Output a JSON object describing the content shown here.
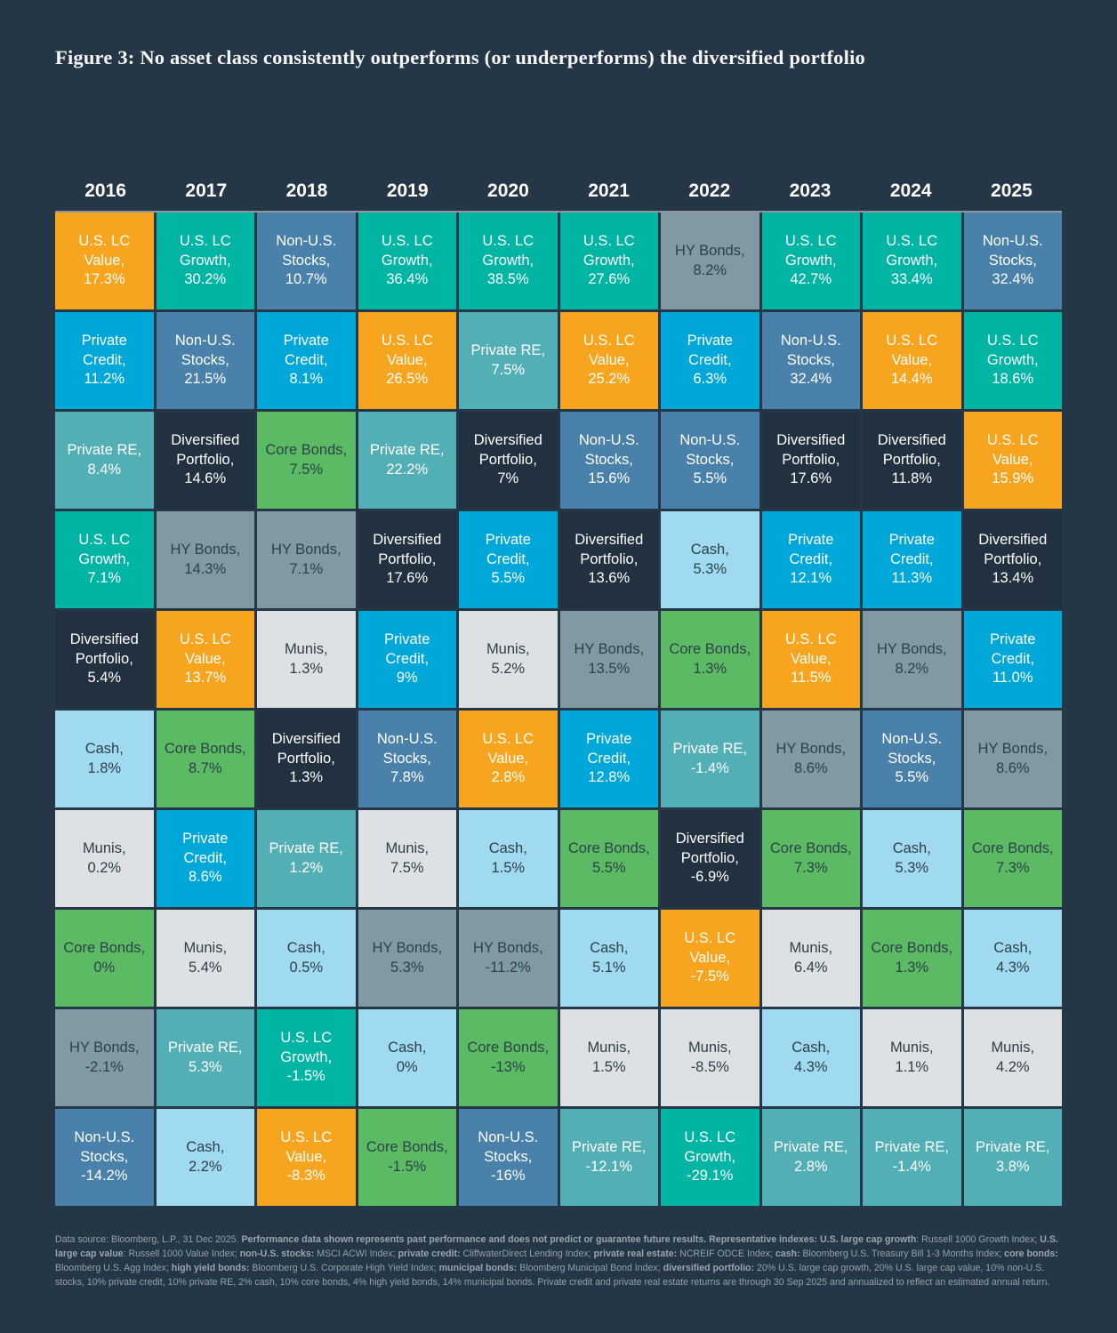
{
  "title": "Figure 3: No asset class consistently outperforms (or underperforms) the diversified portfolio",
  "chart_data": {
    "type": "table",
    "title": "Figure 3: No asset class consistently outperforms (or underperforms) the diversified portfolio",
    "years": [
      "2016",
      "2017",
      "2018",
      "2019",
      "2020",
      "2021",
      "2022",
      "2023",
      "2024",
      "2025"
    ],
    "color_map": {
      "lcv": {
        "name": "U.S. LC Value",
        "bg": "#F7A41E",
        "fg": "#FFFFFF"
      },
      "lcg": {
        "name": "U.S. LC Growth",
        "bg": "#00B5A4",
        "fg": "#FFFFFF"
      },
      "nonus": {
        "name": "Non-U.S. Stocks",
        "bg": "#4A81AB",
        "fg": "#FFFFFF"
      },
      "pc": {
        "name": "Private Credit",
        "bg": "#00A8DA",
        "fg": "#FFFFFF"
      },
      "pre": {
        "name": "Private RE",
        "bg": "#52AFB5",
        "fg": "#FFFFFF"
      },
      "dp": {
        "name": "Diversified Portfolio",
        "bg": "#22313F",
        "fg": "#FFFFFF"
      },
      "hy": {
        "name": "HY Bonds",
        "bg": "#8099A2",
        "fg": "#2F4049"
      },
      "cb": {
        "name": "Core Bonds",
        "bg": "#5ABB64",
        "fg": "#2F4049"
      },
      "munis": {
        "name": "Munis",
        "bg": "#DEE1E3",
        "fg": "#2F4049"
      },
      "cash": {
        "name": "Cash",
        "bg": "#A0DAF1",
        "fg": "#2F4049"
      }
    },
    "columns": [
      {
        "year": "2016",
        "cells": [
          {
            "asset": "U.S. LC Value",
            "value": "17.3%",
            "key": "lcv"
          },
          {
            "asset": "Private Credit",
            "value": "11.2%",
            "key": "pc"
          },
          {
            "asset": "Private RE",
            "value": "8.4%",
            "key": "pre"
          },
          {
            "asset": "U.S. LC Growth",
            "value": "7.1%",
            "key": "lcg"
          },
          {
            "asset": "Diversified Portfolio",
            "value": "5.4%",
            "key": "dp"
          },
          {
            "asset": "Cash",
            "value": "1.8%",
            "key": "cash"
          },
          {
            "asset": "Munis",
            "value": "0.2%",
            "key": "munis"
          },
          {
            "asset": "Core Bonds",
            "value": "0%",
            "key": "cb"
          },
          {
            "asset": "HY Bonds",
            "value": "-2.1%",
            "key": "hy"
          },
          {
            "asset": "Non-U.S. Stocks",
            "value": "-14.2%",
            "key": "nonus"
          }
        ]
      },
      {
        "year": "2017",
        "cells": [
          {
            "asset": "U.S. LC Growth",
            "value": "30.2%",
            "key": "lcg"
          },
          {
            "asset": "Non-U.S. Stocks",
            "value": "21.5%",
            "key": "nonus"
          },
          {
            "asset": "Diversified Portfolio",
            "value": "14.6%",
            "key": "dp"
          },
          {
            "asset": "HY Bonds",
            "value": "14.3%",
            "key": "hy"
          },
          {
            "asset": "U.S. LC Value",
            "value": "13.7%",
            "key": "lcv"
          },
          {
            "asset": "Core Bonds",
            "value": "8.7%",
            "key": "cb"
          },
          {
            "asset": "Private Credit",
            "value": "8.6%",
            "key": "pc"
          },
          {
            "asset": "Munis",
            "value": "5.4%",
            "key": "munis"
          },
          {
            "asset": "Private RE",
            "value": "5.3%",
            "key": "pre"
          },
          {
            "asset": "Cash",
            "value": "2.2%",
            "key": "cash"
          }
        ]
      },
      {
        "year": "2018",
        "cells": [
          {
            "asset": "Non-U.S. Stocks",
            "value": "10.7%",
            "key": "nonus"
          },
          {
            "asset": "Private Credit",
            "value": "8.1%",
            "key": "pc"
          },
          {
            "asset": "Core Bonds",
            "value": "7.5%",
            "key": "cb"
          },
          {
            "asset": "HY Bonds",
            "value": "7.1%",
            "key": "hy"
          },
          {
            "asset": "Munis",
            "value": "1.3%",
            "key": "munis"
          },
          {
            "asset": "Diversified Portfolio",
            "value": "1.3%",
            "key": "dp"
          },
          {
            "asset": "Private RE",
            "value": "1.2%",
            "key": "pre"
          },
          {
            "asset": "Cash",
            "value": "0.5%",
            "key": "cash"
          },
          {
            "asset": "U.S. LC Growth",
            "value": "-1.5%",
            "key": "lcg"
          },
          {
            "asset": "U.S. LC Value",
            "value": "-8.3%",
            "key": "lcv"
          }
        ]
      },
      {
        "year": "2019",
        "cells": [
          {
            "asset": "U.S. LC Growth",
            "value": "36.4%",
            "key": "lcg"
          },
          {
            "asset": "U.S. LC Value",
            "value": "26.5%",
            "key": "lcv"
          },
          {
            "asset": "Private RE",
            "value": "22.2%",
            "key": "pre"
          },
          {
            "asset": "Diversified Portfolio",
            "value": "17.6%",
            "key": "dp"
          },
          {
            "asset": "Private Credit",
            "value": "9%",
            "key": "pc"
          },
          {
            "asset": "Non-U.S. Stocks",
            "value": "7.8%",
            "key": "nonus"
          },
          {
            "asset": "Munis",
            "value": "7.5%",
            "key": "munis"
          },
          {
            "asset": "HY Bonds",
            "value": "5.3%",
            "key": "hy"
          },
          {
            "asset": "Cash",
            "value": "0%",
            "key": "cash"
          },
          {
            "asset": "Core Bonds",
            "value": "-1.5%",
            "key": "cb"
          }
        ]
      },
      {
        "year": "2020",
        "cells": [
          {
            "asset": "U.S. LC Growth",
            "value": "38.5%",
            "key": "lcg"
          },
          {
            "asset": "Private RE",
            "value": "7.5%",
            "key": "pre"
          },
          {
            "asset": "Diversified Portfolio",
            "value": "7%",
            "key": "dp"
          },
          {
            "asset": "Private Credit",
            "value": "5.5%",
            "key": "pc"
          },
          {
            "asset": "Munis",
            "value": "5.2%",
            "key": "munis"
          },
          {
            "asset": "U.S. LC Value",
            "value": "2.8%",
            "key": "lcv"
          },
          {
            "asset": "Cash",
            "value": "1.5%",
            "key": "cash"
          },
          {
            "asset": "HY Bonds",
            "value": "-11.2%",
            "key": "hy"
          },
          {
            "asset": "Core Bonds",
            "value": "-13%",
            "key": "cb"
          },
          {
            "asset": "Non-U.S. Stocks",
            "value": "-16%",
            "key": "nonus"
          }
        ]
      },
      {
        "year": "2021",
        "cells": [
          {
            "asset": "U.S. LC Growth",
            "value": "27.6%",
            "key": "lcg"
          },
          {
            "asset": "U.S. LC Value",
            "value": "25.2%",
            "key": "lcv"
          },
          {
            "asset": "Non-U.S. Stocks",
            "value": "15.6%",
            "key": "nonus"
          },
          {
            "asset": "Diversified Portfolio",
            "value": "13.6%",
            "key": "dp"
          },
          {
            "asset": "HY Bonds",
            "value": "13.5%",
            "key": "hy"
          },
          {
            "asset": "Private Credit",
            "value": "12.8%",
            "key": "pc"
          },
          {
            "asset": "Core Bonds",
            "value": "5.5%",
            "key": "cb"
          },
          {
            "asset": "Cash",
            "value": "5.1%",
            "key": "cash"
          },
          {
            "asset": "Munis",
            "value": "1.5%",
            "key": "munis"
          },
          {
            "asset": "Private RE",
            "value": "-12.1%",
            "key": "pre"
          }
        ]
      },
      {
        "year": "2022",
        "cells": [
          {
            "asset": "HY Bonds",
            "value": "8.2%",
            "key": "hy"
          },
          {
            "asset": "Private Credit",
            "value": "6.3%",
            "key": "pc"
          },
          {
            "asset": "Non-U.S. Stocks",
            "value": "5.5%",
            "key": "nonus"
          },
          {
            "asset": "Cash",
            "value": "5.3%",
            "key": "cash"
          },
          {
            "asset": "Core Bonds",
            "value": "1.3%",
            "key": "cb"
          },
          {
            "asset": "Private RE",
            "value": "-1.4%",
            "key": "pre"
          },
          {
            "asset": "Diversified Portfolio",
            "value": "-6.9%",
            "key": "dp"
          },
          {
            "asset": "U.S. LC Value",
            "value": "-7.5%",
            "key": "lcv"
          },
          {
            "asset": "Munis",
            "value": "-8.5%",
            "key": "munis"
          },
          {
            "asset": "U.S. LC Growth",
            "value": "-29.1%",
            "key": "lcg"
          }
        ]
      },
      {
        "year": "2023",
        "cells": [
          {
            "asset": "U.S. LC Growth",
            "value": "42.7%",
            "key": "lcg"
          },
          {
            "asset": "Non-U.S. Stocks",
            "value": "32.4%",
            "key": "nonus"
          },
          {
            "asset": "Diversified Portfolio",
            "value": "17.6%",
            "key": "dp"
          },
          {
            "asset": "Private Credit",
            "value": "12.1%",
            "key": "pc"
          },
          {
            "asset": "U.S. LC Value",
            "value": "11.5%",
            "key": "lcv"
          },
          {
            "asset": "HY Bonds",
            "value": "8.6%",
            "key": "hy"
          },
          {
            "asset": "Core Bonds",
            "value": "7.3%",
            "key": "cb"
          },
          {
            "asset": "Munis",
            "value": "6.4%",
            "key": "munis"
          },
          {
            "asset": "Cash",
            "value": "4.3%",
            "key": "cash"
          },
          {
            "asset": "Private RE",
            "value": "2.8%",
            "key": "pre"
          }
        ]
      },
      {
        "year": "2024",
        "cells": [
          {
            "asset": "U.S. LC Growth",
            "value": "33.4%",
            "key": "lcg"
          },
          {
            "asset": "U.S. LC Value",
            "value": "14.4%",
            "key": "lcv"
          },
          {
            "asset": "Diversified Portfolio",
            "value": "11.8%",
            "key": "dp"
          },
          {
            "asset": "Private Credit",
            "value": "11.3%",
            "key": "pc"
          },
          {
            "asset": "HY Bonds",
            "value": "8.2%",
            "key": "hy"
          },
          {
            "asset": "Non-U.S. Stocks",
            "value": "5.5%",
            "key": "nonus"
          },
          {
            "asset": "Cash",
            "value": "5.3%",
            "key": "cash"
          },
          {
            "asset": "Core Bonds",
            "value": "1.3%",
            "key": "cb"
          },
          {
            "asset": "Munis",
            "value": "1.1%",
            "key": "munis"
          },
          {
            "asset": "Private RE",
            "value": "-1.4%",
            "key": "pre"
          }
        ]
      },
      {
        "year": "2025",
        "cells": [
          {
            "asset": "Non-U.S. Stocks",
            "value": "32.4%",
            "key": "nonus"
          },
          {
            "asset": "U.S. LC Growth",
            "value": "18.6%",
            "key": "lcg"
          },
          {
            "asset": "U.S. LC Value",
            "value": "15.9%",
            "key": "lcv"
          },
          {
            "asset": "Diversified Portfolio",
            "value": "13.4%",
            "key": "dp"
          },
          {
            "asset": "Private Credit",
            "value": "11.0%",
            "key": "pc"
          },
          {
            "asset": "HY Bonds",
            "value": "8.6%",
            "key": "hy"
          },
          {
            "asset": "Core Bonds",
            "value": "7.3%",
            "key": "cb"
          },
          {
            "asset": "Cash",
            "value": "4.3%",
            "key": "cash"
          },
          {
            "asset": "Munis",
            "value": "4.2%",
            "key": "munis"
          },
          {
            "asset": "Private RE",
            "value": "3.8%",
            "key": "pre"
          }
        ]
      }
    ]
  },
  "footnote": {
    "segments": [
      {
        "text": "Data source: Bloomberg, L.P., 31 Dec 2025. ",
        "bold": false
      },
      {
        "text": "Performance data shown represents past performance and does not predict or guarantee future results. Representative indexes: U.S. large cap growth",
        "bold": true
      },
      {
        "text": ": Russell 1000 Growth Index; ",
        "bold": false
      },
      {
        "text": "U.S. large cap value",
        "bold": true
      },
      {
        "text": ": Russell 1000 Value Index; ",
        "bold": false
      },
      {
        "text": "non-U.S. stocks:",
        "bold": true
      },
      {
        "text": " MSCI ACWI Index; ",
        "bold": false
      },
      {
        "text": "private credit:",
        "bold": true
      },
      {
        "text": " CliffwaterDirect Lending Index; ",
        "bold": false
      },
      {
        "text": "private real estate:",
        "bold": true
      },
      {
        "text": " NCREIF ODCE Index; ",
        "bold": false
      },
      {
        "text": "cash:",
        "bold": true
      },
      {
        "text": " Bloomberg U.S. Treasury Bill 1-3 Months Index; ",
        "bold": false
      },
      {
        "text": "core bonds:",
        "bold": true
      },
      {
        "text": " Bloomberg U.S. Agg Index; ",
        "bold": false
      },
      {
        "text": "high yield bonds:",
        "bold": true
      },
      {
        "text": " Bloomberg U.S. Corporate High Yield Index; ",
        "bold": false
      },
      {
        "text": "municipal bonds:",
        "bold": true
      },
      {
        "text": " Bloomberg Municipal Bond Index; ",
        "bold": false
      },
      {
        "text": "diversified portfolio:",
        "bold": true
      },
      {
        "text": " 20% U.S. large cap growth, 20% U.S. large cap value, 10% non-U.S. stocks, 10% private credit, 10% private RE, 2% cash, 10% core bonds, 4% high yield bonds, 14% municipal bonds. Private credit and private real estate returns are through 30 Sep 2025 and annualized to reflect an estimated annual return.",
        "bold": false
      }
    ]
  }
}
